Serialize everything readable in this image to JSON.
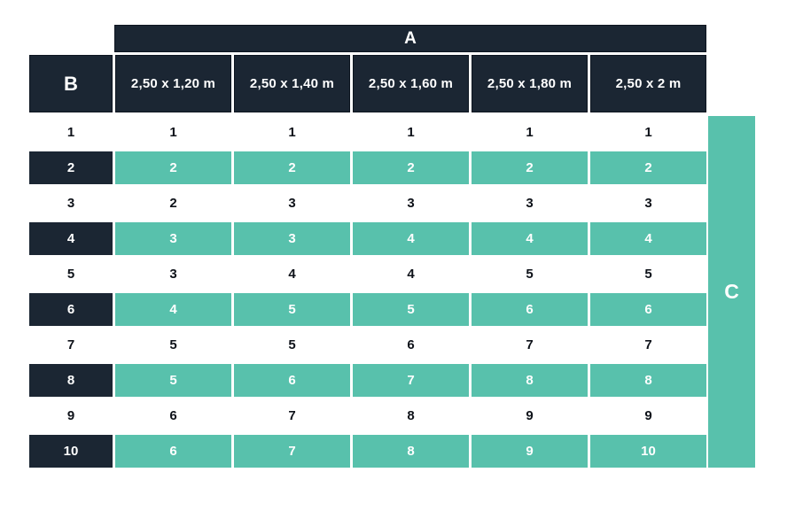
{
  "chart_data": {
    "type": "table",
    "column_group_label": "A",
    "row_header_label": "B",
    "row_group_label": "C",
    "column_headers": [
      "2,50 x 1,20 m",
      "2,50 x 1,40 m",
      "2,50 x 1,60 m",
      "2,50 x 1,80 m",
      "2,50 x 2 m"
    ],
    "rows": [
      {
        "b": "1",
        "values": [
          "1",
          "1",
          "1",
          "1",
          "1"
        ],
        "highlighted": false
      },
      {
        "b": "2",
        "values": [
          "2",
          "2",
          "2",
          "2",
          "2"
        ],
        "highlighted": true
      },
      {
        "b": "3",
        "values": [
          "2",
          "3",
          "3",
          "3",
          "3"
        ],
        "highlighted": false
      },
      {
        "b": "4",
        "values": [
          "3",
          "3",
          "4",
          "4",
          "4"
        ],
        "highlighted": true
      },
      {
        "b": "5",
        "values": [
          "3",
          "4",
          "4",
          "5",
          "5"
        ],
        "highlighted": false
      },
      {
        "b": "6",
        "values": [
          "4",
          "5",
          "5",
          "6",
          "6"
        ],
        "highlighted": true
      },
      {
        "b": "7",
        "values": [
          "5",
          "5",
          "6",
          "7",
          "7"
        ],
        "highlighted": false
      },
      {
        "b": "8",
        "values": [
          "5",
          "6",
          "7",
          "8",
          "8"
        ],
        "highlighted": true
      },
      {
        "b": "9",
        "values": [
          "6",
          "7",
          "8",
          "9",
          "9"
        ],
        "highlighted": false
      },
      {
        "b": "10",
        "values": [
          "6",
          "7",
          "8",
          "9",
          "10"
        ],
        "highlighted": true
      }
    ]
  },
  "colors": {
    "navy": "#1b2633",
    "teal": "#58c1ac",
    "text_dark": "#0e1219",
    "text_light": "#ffffff",
    "background": "#ffffff"
  }
}
